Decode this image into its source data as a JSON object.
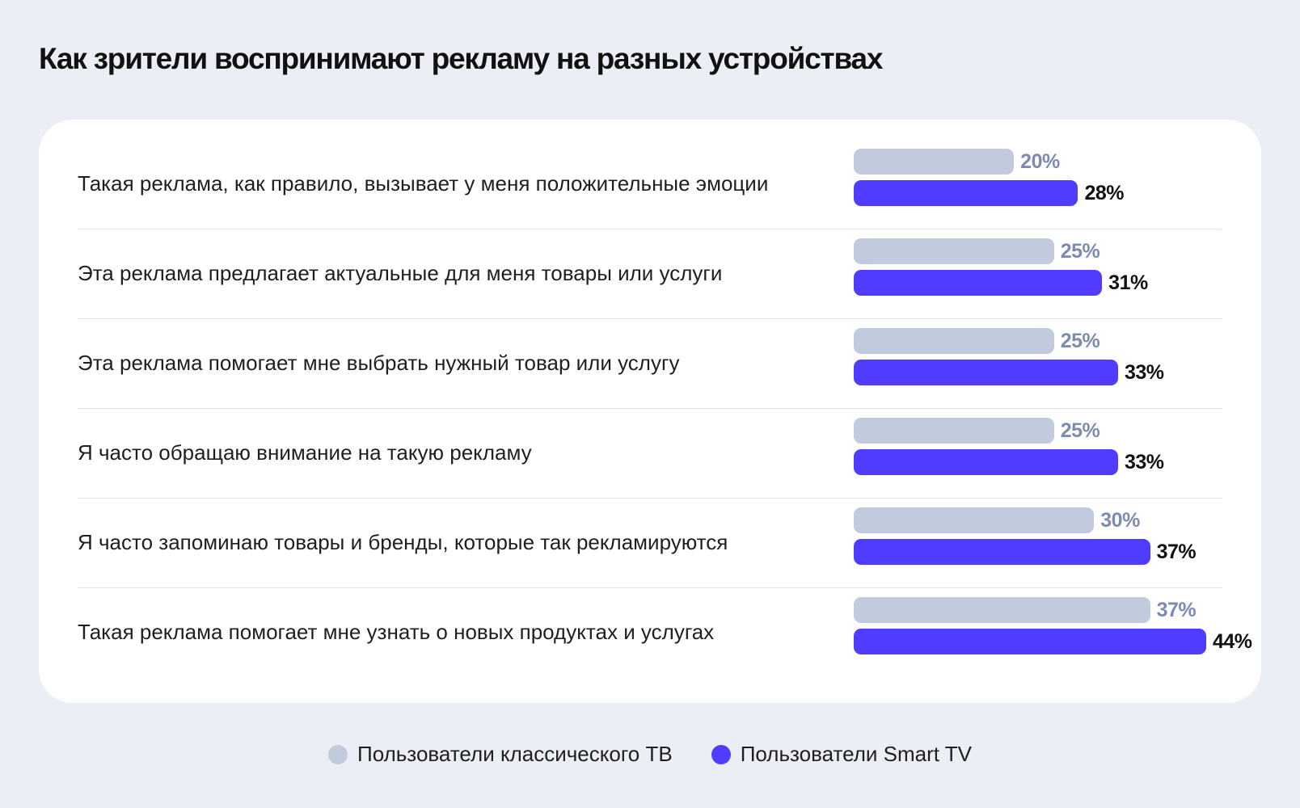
{
  "chart_data": {
    "type": "bar",
    "orientation": "horizontal",
    "title": "Как зрители воспринимают рекламу на разных устройствах",
    "categories": [
      "Такая реклама, как правило, вызывает у меня положительные эмоции",
      "Эта реклама предлагает актуальные для меня товары или услуги",
      "Эта реклама помогает мне выбрать нужный товар или услугу",
      "Я часто обращаю внимание на такую рекламу",
      "Я часто запоминаю товары и бренды, которые так рекламируются",
      "Такая реклама помогает мне узнать о новых продуктах и услугах"
    ],
    "series": [
      {
        "name": "Пользователи классического ТВ",
        "color": "#c2cadd",
        "values": [
          20,
          25,
          25,
          25,
          30,
          37
        ]
      },
      {
        "name": "Пользователи Smart TV",
        "color": "#4f3cff",
        "values": [
          28,
          31,
          33,
          33,
          37,
          44
        ]
      }
    ],
    "value_suffix": "%",
    "xlim": [
      0,
      44
    ],
    "grid": false,
    "legend_position": "bottom-center"
  },
  "colors": {
    "background": "#ebeef5",
    "card": "#ffffff",
    "classic": "#c2cadd",
    "smart": "#4f3cff",
    "classic_label": "#7e8bb0"
  }
}
